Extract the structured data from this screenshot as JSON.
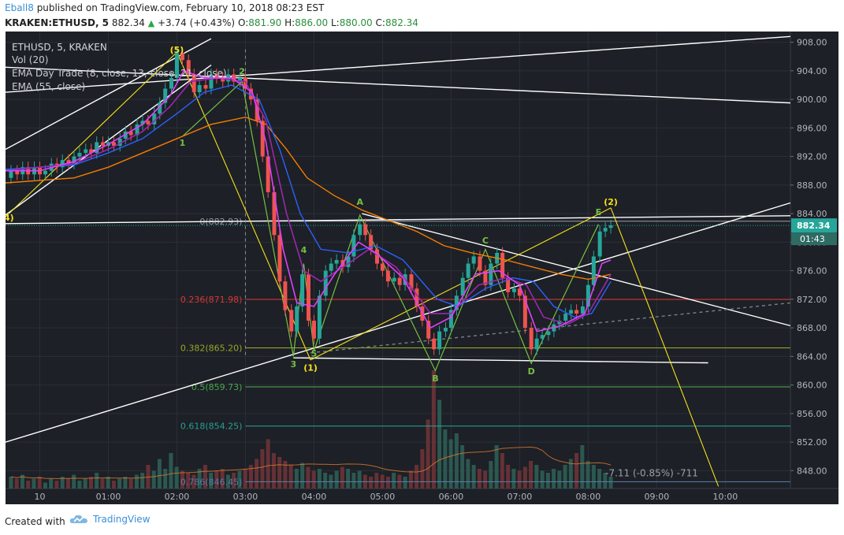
{
  "header": {
    "author": "Eball8",
    "published_text": "published on TradingView.com, February 10, 2018 08:23 EST",
    "symbol": "KRAKEN:ETHUSD, 5",
    "last": "882.34",
    "change_icon": "up-triangle-icon",
    "change": "+3.74 (+0.43%)",
    "o_label": "O:",
    "o_value": "881.90",
    "h_label": "H:",
    "h_value": "886.00",
    "l_label": "L:",
    "l_value": "880.00",
    "c_label": "C:",
    "c_value": "882.34"
  },
  "legend": {
    "title": "ETHUSD, 5, KRAKEN",
    "line1": "Vol (20)",
    "line2": "EMA Day Trade (8, close, 13, close, 21, close)",
    "line3": "EMA (55, close)"
  },
  "footer": {
    "created_with": "Created with",
    "brand": "TradingView",
    "brand_icon": "tradingview-cloud-icon"
  },
  "colors": {
    "background": "#1d2026",
    "up": "#26a69a",
    "down": "#ef5350",
    "ema8": "#e040fb",
    "ema13": "#9c27b0",
    "ema21": "#2962ff",
    "ema55": "#f57c00",
    "trendline": "#ffffff",
    "wave": "#76c043",
    "yellow": "#f5e11c"
  },
  "chart_data": {
    "type": "line",
    "symbol": "ETHUSD",
    "interval": "5",
    "exchange": "KRAKEN",
    "ylim": [
      845.5,
      909.5
    ],
    "y_ticks": [
      "908.00",
      "904.00",
      "900.00",
      "896.00",
      "892.00",
      "888.00",
      "884.00",
      "880.00",
      "876.00",
      "872.00",
      "868.00",
      "864.00",
      "860.00",
      "856.00",
      "852.00",
      "848.00"
    ],
    "x_ticks": [
      "10",
      "01:00",
      "02:00",
      "03:00",
      "04:00",
      "05:00",
      "06:00",
      "07:00",
      "08:00",
      "09:00",
      "10:00"
    ],
    "x_tick_hours": [
      0,
      1,
      2,
      3,
      4,
      5,
      6,
      7,
      8,
      9,
      10
    ],
    "x_hours_range": [
      -0.5,
      10.95
    ],
    "last_price": 882.34,
    "last_price_label": "882.34",
    "countdown_label": "01:43",
    "price_path": [
      [
        -0.5,
        889.5
      ],
      [
        -0.4,
        890.5
      ],
      [
        -0.3,
        889.0
      ],
      [
        -0.2,
        891.0
      ],
      [
        -0.1,
        889.0
      ],
      [
        0.0,
        890.5
      ],
      [
        0.1,
        889.5
      ],
      [
        0.3,
        891.0
      ],
      [
        0.5,
        891.5
      ],
      [
        0.7,
        893.0
      ],
      [
        0.9,
        894.0
      ],
      [
        1.1,
        893.5
      ],
      [
        1.3,
        895.5
      ],
      [
        1.5,
        897.0
      ],
      [
        1.7,
        898.0
      ],
      [
        1.9,
        902.5
      ],
      [
        2.05,
        907.0
      ],
      [
        2.2,
        905.0
      ],
      [
        2.4,
        901.5
      ],
      [
        2.6,
        903.5
      ],
      [
        2.8,
        903.0
      ],
      [
        3.0,
        902.5
      ],
      [
        3.1,
        900.5
      ],
      [
        3.2,
        896.5
      ],
      [
        3.3,
        892.0
      ],
      [
        3.45,
        884.0
      ],
      [
        3.6,
        873.0
      ],
      [
        3.7,
        867.0
      ],
      [
        3.8,
        871.0
      ],
      [
        3.9,
        876.5
      ],
      [
        4.0,
        866.0
      ],
      [
        4.1,
        873.0
      ],
      [
        4.2,
        877.5
      ],
      [
        4.35,
        878.0
      ],
      [
        4.5,
        876.0
      ],
      [
        4.65,
        883.0
      ],
      [
        4.8,
        881.5
      ],
      [
        5.0,
        876.5
      ],
      [
        5.2,
        874.5
      ],
      [
        5.4,
        875.5
      ],
      [
        5.5,
        872.0
      ],
      [
        5.6,
        869.0
      ],
      [
        5.75,
        864.0
      ],
      [
        5.9,
        867.0
      ],
      [
        6.05,
        871.5
      ],
      [
        6.2,
        876.5
      ],
      [
        6.35,
        878.5
      ],
      [
        6.5,
        874.5
      ],
      [
        6.6,
        878.0
      ],
      [
        6.8,
        873.5
      ],
      [
        7.0,
        873.0
      ],
      [
        7.1,
        867.5
      ],
      [
        7.2,
        865.0
      ],
      [
        7.35,
        867.0
      ],
      [
        7.5,
        868.0
      ],
      [
        7.65,
        869.5
      ],
      [
        7.8,
        870.5
      ],
      [
        7.95,
        870.0
      ],
      [
        8.05,
        874.0
      ],
      [
        8.15,
        880.5
      ],
      [
        8.25,
        882.5
      ],
      [
        8.33,
        882.34
      ]
    ],
    "candles": [
      [
        -0.42,
        889.0,
        890.0
      ],
      [
        -0.33,
        890.0,
        889.5
      ],
      [
        -0.25,
        889.5,
        890.5
      ],
      [
        -0.17,
        890.5,
        889.5
      ],
      [
        -0.08,
        889.5,
        890.5
      ],
      [
        0.0,
        890.5,
        889.5
      ],
      [
        0.08,
        889.5,
        890.0
      ],
      [
        0.17,
        890.0,
        891.0
      ],
      [
        0.25,
        891.0,
        890.5
      ],
      [
        0.33,
        890.5,
        891.5
      ],
      [
        0.42,
        891.5,
        891.0
      ],
      [
        0.5,
        891.0,
        892.0
      ],
      [
        0.58,
        892.0,
        892.5
      ],
      [
        0.67,
        892.5,
        893.0
      ],
      [
        0.75,
        893.0,
        892.5
      ],
      [
        0.83,
        892.5,
        894.0
      ],
      [
        0.92,
        894.0,
        893.5
      ],
      [
        1.0,
        893.5,
        894.0
      ],
      [
        1.08,
        894.0,
        893.5
      ],
      [
        1.17,
        893.5,
        894.5
      ],
      [
        1.25,
        894.5,
        895.5
      ],
      [
        1.33,
        895.5,
        895.0
      ],
      [
        1.42,
        895.0,
        896.5
      ],
      [
        1.5,
        896.5,
        897.0
      ],
      [
        1.58,
        897.0,
        896.5
      ],
      [
        1.67,
        896.5,
        898.0
      ],
      [
        1.75,
        898.0,
        899.5
      ],
      [
        1.83,
        899.5,
        901.5
      ],
      [
        1.92,
        901.5,
        903.0
      ],
      [
        2.0,
        903.0,
        906.5
      ],
      [
        2.08,
        906.5,
        905.5
      ],
      [
        2.17,
        905.5,
        903.5
      ],
      [
        2.25,
        903.5,
        901.0
      ],
      [
        2.33,
        901.0,
        902.0
      ],
      [
        2.42,
        902.0,
        901.5
      ],
      [
        2.5,
        901.5,
        903.5
      ],
      [
        2.58,
        903.5,
        903.0
      ],
      [
        2.67,
        903.0,
        902.5
      ],
      [
        2.75,
        902.5,
        903.5
      ],
      [
        2.83,
        903.5,
        902.5
      ],
      [
        2.92,
        902.5,
        903.0
      ],
      [
        3.0,
        903.0,
        901.5
      ],
      [
        3.08,
        901.5,
        900.0
      ],
      [
        3.17,
        900.0,
        897.0
      ],
      [
        3.25,
        897.0,
        892.0
      ],
      [
        3.33,
        892.0,
        887.0
      ],
      [
        3.42,
        887.0,
        881.0
      ],
      [
        3.5,
        881.0,
        874.5
      ],
      [
        3.58,
        874.5,
        870.5
      ],
      [
        3.67,
        870.5,
        867.5
      ],
      [
        3.75,
        867.5,
        871.0
      ],
      [
        3.83,
        871.0,
        875.5
      ],
      [
        3.92,
        875.5,
        869.0
      ],
      [
        4.0,
        869.0,
        866.5
      ],
      [
        4.08,
        866.5,
        872.5
      ],
      [
        4.17,
        872.5,
        876.0
      ],
      [
        4.25,
        876.0,
        877.0
      ],
      [
        4.33,
        877.0,
        877.5
      ],
      [
        4.42,
        877.5,
        876.5
      ],
      [
        4.5,
        876.5,
        878.0
      ],
      [
        4.58,
        878.0,
        881.0
      ],
      [
        4.67,
        881.0,
        882.5
      ],
      [
        4.75,
        882.5,
        881.0
      ],
      [
        4.83,
        881.0,
        879.0
      ],
      [
        4.92,
        879.0,
        877.0
      ],
      [
        5.0,
        877.0,
        876.0
      ],
      [
        5.08,
        876.0,
        874.5
      ],
      [
        5.17,
        874.5,
        875.0
      ],
      [
        5.25,
        875.0,
        874.0
      ],
      [
        5.33,
        874.0,
        875.5
      ],
      [
        5.42,
        875.5,
        873.5
      ],
      [
        5.5,
        873.5,
        871.0
      ],
      [
        5.58,
        871.0,
        869.0
      ],
      [
        5.67,
        869.0,
        866.5
      ],
      [
        5.75,
        866.5,
        865.0
      ],
      [
        5.83,
        865.0,
        867.5
      ],
      [
        5.92,
        867.5,
        868.0
      ],
      [
        6.0,
        868.0,
        870.5
      ],
      [
        6.08,
        870.5,
        872.5
      ],
      [
        6.17,
        872.5,
        875.0
      ],
      [
        6.25,
        875.0,
        877.0
      ],
      [
        6.33,
        877.0,
        878.0
      ],
      [
        6.42,
        878.0,
        876.0
      ],
      [
        6.5,
        876.0,
        874.0
      ],
      [
        6.58,
        874.0,
        877.0
      ],
      [
        6.67,
        877.0,
        878.5
      ],
      [
        6.75,
        878.5,
        875.0
      ],
      [
        6.83,
        875.0,
        873.0
      ],
      [
        6.92,
        873.0,
        873.5
      ],
      [
        7.0,
        873.5,
        872.5
      ],
      [
        7.08,
        872.5,
        868.0
      ],
      [
        7.17,
        868.0,
        865.0
      ],
      [
        7.25,
        865.0,
        866.5
      ],
      [
        7.33,
        866.5,
        867.0
      ],
      [
        7.42,
        867.0,
        867.5
      ],
      [
        7.5,
        867.5,
        868.5
      ],
      [
        7.58,
        868.5,
        869.0
      ],
      [
        7.67,
        869.0,
        870.0
      ],
      [
        7.75,
        870.0,
        870.5
      ],
      [
        7.83,
        870.5,
        870.0
      ],
      [
        7.92,
        870.0,
        871.0
      ],
      [
        8.0,
        871.0,
        874.0
      ],
      [
        8.08,
        874.0,
        878.0
      ],
      [
        8.17,
        878.0,
        881.5
      ],
      [
        8.25,
        881.5,
        882.0
      ],
      [
        8.33,
        882.0,
        882.34
      ]
    ],
    "volume": [
      0.06,
      0.05,
      0.07,
      0.04,
      0.05,
      0.06,
      0.03,
      0.05,
      0.04,
      0.06,
      0.05,
      0.07,
      0.04,
      0.05,
      0.06,
      0.08,
      0.05,
      0.06,
      0.04,
      0.05,
      0.06,
      0.05,
      0.07,
      0.08,
      0.12,
      0.09,
      0.15,
      0.1,
      0.18,
      0.11,
      0.09,
      0.08,
      0.07,
      0.1,
      0.12,
      0.08,
      0.09,
      0.1,
      0.07,
      0.08,
      0.09,
      0.1,
      0.12,
      0.15,
      0.2,
      0.25,
      0.18,
      0.16,
      0.14,
      0.12,
      0.1,
      0.13,
      0.11,
      0.09,
      0.1,
      0.08,
      0.07,
      0.09,
      0.11,
      0.1,
      0.08,
      0.09,
      0.07,
      0.06,
      0.08,
      0.07,
      0.06,
      0.08,
      0.07,
      0.06,
      0.09,
      0.12,
      0.2,
      0.35,
      0.6,
      0.45,
      0.3,
      0.25,
      0.28,
      0.22,
      0.15,
      0.12,
      0.1,
      0.09,
      0.14,
      0.22,
      0.18,
      0.12,
      0.1,
      0.09,
      0.11,
      0.14,
      0.12,
      0.09,
      0.08,
      0.1,
      0.09,
      0.12,
      0.15,
      0.18,
      0.22,
      0.14,
      0.12,
      0.1,
      0.08,
      0.06
    ],
    "ema8": [
      [
        -0.5,
        890.0
      ],
      [
        0.0,
        890.0
      ],
      [
        0.5,
        891.3
      ],
      [
        1.0,
        893.7
      ],
      [
        1.5,
        896.5
      ],
      [
        1.9,
        900.5
      ],
      [
        2.1,
        904.0
      ],
      [
        2.4,
        903.0
      ],
      [
        2.8,
        903.0
      ],
      [
        3.1,
        901.0
      ],
      [
        3.3,
        894.0
      ],
      [
        3.55,
        879.0
      ],
      [
        3.75,
        871.5
      ],
      [
        4.0,
        871.0
      ],
      [
        4.3,
        875.5
      ],
      [
        4.65,
        880.0
      ],
      [
        4.9,
        878.5
      ],
      [
        5.3,
        875.0
      ],
      [
        5.7,
        868.0
      ],
      [
        6.0,
        869.5
      ],
      [
        6.35,
        875.5
      ],
      [
        6.7,
        876.0
      ],
      [
        7.0,
        874.0
      ],
      [
        7.25,
        867.5
      ],
      [
        7.6,
        868.3
      ],
      [
        7.95,
        870.0
      ],
      [
        8.2,
        877.0
      ],
      [
        8.33,
        877.5
      ]
    ],
    "ema13": [
      [
        -0.5,
        890.0
      ],
      [
        0.5,
        891.0
      ],
      [
        1.0,
        893.0
      ],
      [
        1.5,
        895.5
      ],
      [
        1.9,
        899.0
      ],
      [
        2.2,
        902.5
      ],
      [
        2.6,
        903.0
      ],
      [
        3.0,
        902.5
      ],
      [
        3.3,
        897.0
      ],
      [
        3.6,
        884.0
      ],
      [
        3.85,
        876.0
      ],
      [
        4.1,
        874.5
      ],
      [
        4.5,
        877.0
      ],
      [
        4.8,
        879.0
      ],
      [
        5.2,
        876.5
      ],
      [
        5.7,
        870.0
      ],
      [
        6.0,
        870.0
      ],
      [
        6.4,
        874.0
      ],
      [
        6.8,
        875.0
      ],
      [
        7.1,
        874.0
      ],
      [
        7.35,
        869.5
      ],
      [
        7.7,
        868.5
      ],
      [
        8.0,
        870.0
      ],
      [
        8.33,
        875.5
      ]
    ],
    "ema21": [
      [
        -0.5,
        890.2
      ],
      [
        0.5,
        890.8
      ],
      [
        1.0,
        892.5
      ],
      [
        1.5,
        894.5
      ],
      [
        2.0,
        898.0
      ],
      [
        2.4,
        901.0
      ],
      [
        2.8,
        902.0
      ],
      [
        3.2,
        900.0
      ],
      [
        3.5,
        893.0
      ],
      [
        3.8,
        884.0
      ],
      [
        4.1,
        879.0
      ],
      [
        4.5,
        878.5
      ],
      [
        4.9,
        879.5
      ],
      [
        5.3,
        877.5
      ],
      [
        5.8,
        872.0
      ],
      [
        6.1,
        871.0
      ],
      [
        6.5,
        873.5
      ],
      [
        6.9,
        875.0
      ],
      [
        7.2,
        874.5
      ],
      [
        7.5,
        871.0
      ],
      [
        7.8,
        869.5
      ],
      [
        8.05,
        870.0
      ],
      [
        8.33,
        874.5
      ]
    ],
    "ema55": [
      [
        -0.5,
        888.3
      ],
      [
        0.5,
        889.0
      ],
      [
        1.0,
        890.5
      ],
      [
        1.5,
        892.5
      ],
      [
        2.0,
        894.5
      ],
      [
        2.5,
        896.5
      ],
      [
        3.0,
        897.5
      ],
      [
        3.3,
        896.5
      ],
      [
        3.6,
        893.0
      ],
      [
        3.9,
        889.0
      ],
      [
        4.3,
        886.5
      ],
      [
        4.7,
        884.5
      ],
      [
        5.1,
        883.0
      ],
      [
        5.5,
        881.5
      ],
      [
        5.9,
        879.5
      ],
      [
        6.3,
        878.5
      ],
      [
        6.8,
        877.5
      ],
      [
        7.2,
        876.5
      ],
      [
        7.6,
        875.5
      ],
      [
        8.0,
        874.8
      ],
      [
        8.33,
        875.5
      ]
    ],
    "fib_levels": [
      {
        "label": "0(882.93)",
        "price": 882.93,
        "color": "#9aa0a8"
      },
      {
        "label": "0.236(871.98)",
        "price": 871.98,
        "color": "#e53935"
      },
      {
        "label": "0.382(865.20)",
        "price": 865.2,
        "color": "#9aae2a"
      },
      {
        "label": "0.5(859.73)",
        "price": 859.73,
        "color": "#4caf50"
      },
      {
        "label": "0.618(854.25)",
        "price": 854.25,
        "color": "#26a69a"
      },
      {
        "label": "0.786(846.45)",
        "price": 846.45,
        "color": "#5c7fa8"
      }
    ],
    "wave_labels": [
      {
        "text": "(5)",
        "x": 2.0,
        "y": 906.5,
        "color": "#f5e11c"
      },
      {
        "text": "2",
        "x": 2.95,
        "y": 903.5,
        "color": "#76c043"
      },
      {
        "text": "1",
        "x": 2.08,
        "y": 893.5,
        "color": "#76c043"
      },
      {
        "text": "4)",
        "x": -0.45,
        "y": 883.0,
        "color": "#f5e11c"
      },
      {
        "text": "A",
        "x": 4.67,
        "y": 885.2,
        "color": "#76c043"
      },
      {
        "text": "4",
        "x": 3.85,
        "y": 878.5,
        "color": "#76c043"
      },
      {
        "text": "3",
        "x": 3.7,
        "y": 862.5,
        "color": "#76c043"
      },
      {
        "text": "5",
        "x": 4.0,
        "y": 864.0,
        "color": "#76c043"
      },
      {
        "text": "(1)",
        "x": 3.95,
        "y": 862.0,
        "color": "#f5e11c"
      },
      {
        "text": "B",
        "x": 5.77,
        "y": 860.5,
        "color": "#76c043"
      },
      {
        "text": "C",
        "x": 6.5,
        "y": 879.8,
        "color": "#76c043"
      },
      {
        "text": "D",
        "x": 7.17,
        "y": 861.5,
        "color": "#76c043"
      },
      {
        "text": "E",
        "x": 8.15,
        "y": 883.8,
        "color": "#76c043"
      },
      {
        "text": "(2)",
        "x": 8.33,
        "y": 885.2,
        "color": "#f5e11c"
      }
    ],
    "measure_label": "-7.11 (-0.85%) -711"
  }
}
